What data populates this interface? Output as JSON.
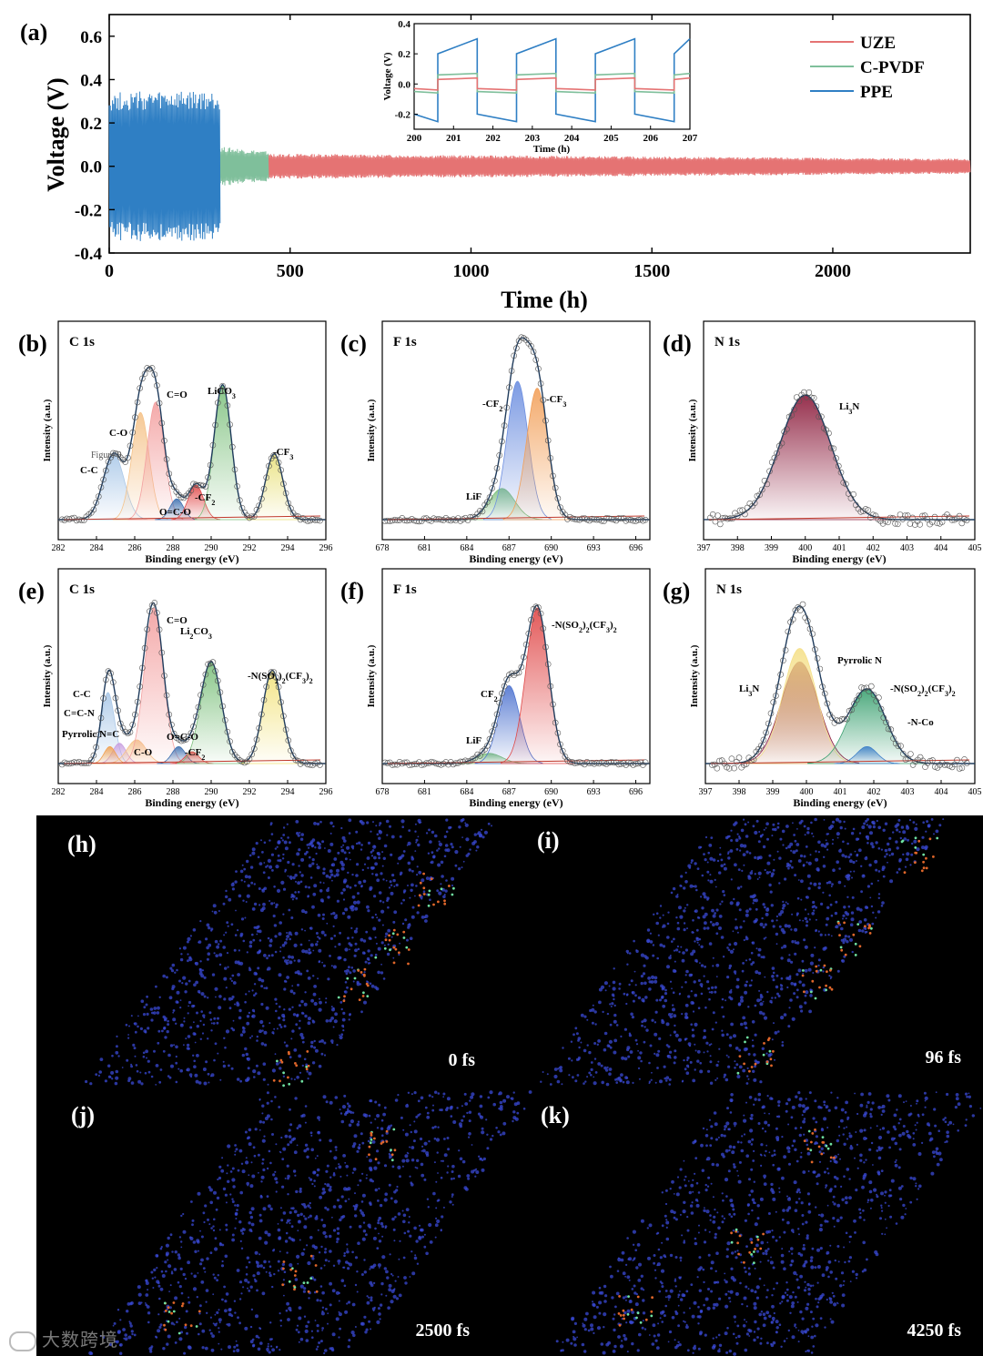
{
  "panel_labels": {
    "a": "(a)",
    "b": "(b)",
    "c": "(c)",
    "d": "(d)",
    "e": "(e)",
    "f": "(f)",
    "g": "(g)",
    "h": "(h)",
    "i": "(i)",
    "j": "(j)",
    "k": "(k)"
  },
  "colors": {
    "uze": "#e57373",
    "cpvdf": "#7fbf9b",
    "ppe": "#2f7fc4",
    "fit_line": "#1f3b5c",
    "sim_bg": "#000000",
    "sim_atoms": "#3a4ad6",
    "sim_accent": "#e0662a"
  },
  "chart_data": [
    {
      "id": "a",
      "type": "line",
      "xlabel": "Time (h)",
      "ylabel": "Voltage (V)",
      "xlim": [
        0,
        2380
      ],
      "ylim": [
        -0.4,
        0.7
      ],
      "xticks": [
        "0",
        "500",
        "1000",
        "1500",
        "2000"
      ],
      "yticks": [
        "-0.4",
        "-0.2",
        "0.0",
        "0.2",
        "0.4",
        "0.6"
      ],
      "legend_position": "top-right",
      "series": [
        {
          "name": "UZE",
          "x_range": [
            440,
            2380
          ],
          "amplitude": [
            0.05,
            0.03
          ]
        },
        {
          "name": "C-PVDF",
          "x_range": [
            300,
            440
          ],
          "amplitude": [
            0.08,
            0.06
          ]
        },
        {
          "name": "PPE",
          "x_range": [
            0,
            305
          ],
          "amplitude": [
            0.3,
            0.3
          ]
        }
      ],
      "inset": {
        "xlabel": "Time (h)",
        "ylabel": "Voltage (V)",
        "xlim": [
          200,
          207
        ],
        "ylim": [
          -0.3,
          0.4
        ],
        "xticks": [
          "200",
          "201",
          "202",
          "203",
          "204",
          "205",
          "206",
          "207"
        ],
        "yticks": [
          "-0.2",
          "0.0",
          "0.2",
          "0.4"
        ],
        "half_period_h": 1,
        "ppe": {
          "high": [
            0.2,
            0.3
          ],
          "low": [
            -0.2,
            -0.25
          ]
        },
        "cpvdf": {
          "high": [
            0.06,
            0.07
          ],
          "low": [
            -0.05,
            -0.06
          ]
        },
        "uze": {
          "high": [
            0.03,
            0.04
          ],
          "low": [
            -0.03,
            -0.04
          ]
        }
      }
    },
    {
      "id": "b",
      "type": "line",
      "title": "C 1s",
      "xlabel": "Binding energy (eV)",
      "ylabel": "Intensity (a.u.)",
      "xlim": [
        282,
        296
      ],
      "xticks": [
        "282",
        "284",
        "286",
        "288",
        "290",
        "292",
        "294",
        "296"
      ],
      "peaks": [
        {
          "label": "C-C",
          "center": 284.9,
          "height": 0.38,
          "width": 0.55,
          "color": "#aac8e8"
        },
        {
          "label": "C-O",
          "center": 286.3,
          "height": 0.62,
          "width": 0.45,
          "color": "#f5c38a"
        },
        {
          "label": "C=O",
          "center": 287.1,
          "height": 0.68,
          "width": 0.45,
          "color": "#f3a0a0"
        },
        {
          "label": "O=C-O",
          "center": 288.2,
          "height": 0.12,
          "width": 0.35,
          "color": "#3e6fb0"
        },
        {
          "label": "-CF",
          "sub": "2",
          "center": 289.2,
          "height": 0.2,
          "width": 0.4,
          "color": "#e04848"
        },
        {
          "label": "LiCO",
          "sub": "3",
          "center": 290.6,
          "height": 0.78,
          "width": 0.45,
          "color": "#7cc07c"
        },
        {
          "label": "-CF",
          "sub": "3",
          "center": 293.3,
          "height": 0.38,
          "width": 0.45,
          "color": "#e8e07a"
        }
      ],
      "annotation": "Figure 9"
    },
    {
      "id": "c",
      "type": "line",
      "title": "F 1s",
      "xlabel": "Binding energy (eV)",
      "ylabel": "Intensity (a.u.)",
      "xlim": [
        678,
        697
      ],
      "xticks": [
        "678",
        "681",
        "684",
        "687",
        "690",
        "693",
        "696"
      ],
      "peaks": [
        {
          "label": "LiF",
          "center": 686.5,
          "height": 0.18,
          "width": 0.9,
          "color": "#7cc07c"
        },
        {
          "label": "-CF",
          "sub": "2",
          "center": 687.6,
          "height": 0.8,
          "width": 0.75,
          "color": "#6d8fe0"
        },
        {
          "label": "-CF",
          "sub": "3",
          "center": 689.0,
          "height": 0.76,
          "width": 0.75,
          "color": "#f2a05a"
        }
      ]
    },
    {
      "id": "d",
      "type": "line",
      "title": "N 1s",
      "xlabel": "Binding energy (eV)",
      "ylabel": "Intensity (a.u.)",
      "xlim": [
        397,
        405
      ],
      "xticks": [
        "397",
        "398",
        "399",
        "400",
        "401",
        "402",
        "403",
        "404",
        "405"
      ],
      "peaks": [
        {
          "label": "Li",
          "sub": "3",
          "after": "N",
          "center": 400.0,
          "height": 0.72,
          "width": 0.75,
          "color": "#8b1a3a"
        }
      ]
    },
    {
      "id": "e",
      "type": "line",
      "title": "C 1s",
      "xlabel": "Binding energy (eV)",
      "ylabel": "Intensity (a.u.)",
      "xlim": [
        282,
        296
      ],
      "xticks": [
        "282",
        "284",
        "286",
        "288",
        "290",
        "292",
        "294",
        "296"
      ],
      "peaks": [
        {
          "label": "C-C",
          "center": 284.6,
          "height": 0.42,
          "width": 0.35,
          "color": "#aac8e8"
        },
        {
          "label": "C=C-N",
          "center": 285.2,
          "height": 0.12,
          "width": 0.35,
          "color": "#c9a0e0"
        },
        {
          "label": "Pyrrolic N=C",
          "center": 284.7,
          "height": 0.1,
          "width": 0.3,
          "color": "#f0a050"
        },
        {
          "label": "C-O",
          "center": 286.1,
          "height": 0.14,
          "width": 0.5,
          "color": "#f5c38a"
        },
        {
          "label": "C=O",
          "center": 287.0,
          "height": 0.92,
          "width": 0.5,
          "color": "#f3a0a0"
        },
        {
          "label": "O=C-O",
          "center": 288.3,
          "height": 0.1,
          "width": 0.35,
          "color": "#3e6fb0"
        },
        {
          "label": "-CF",
          "sub": "2",
          "center": 289.0,
          "height": 0.07,
          "width": 0.35,
          "color": "#e04848"
        },
        {
          "label": "Li",
          "sub": "2",
          "after": "CO",
          "sub2": "3",
          "center": 290.0,
          "height": 0.6,
          "width": 0.55,
          "color": "#7cc07c"
        },
        {
          "label": "-N(SO",
          "sub": "2",
          "after": ")",
          "sub2": "2",
          "after2": "(CF",
          "sub3": "3",
          "after3": ")",
          "sub4": "2",
          "center": 293.2,
          "height": 0.55,
          "width": 0.5,
          "color": "#f2e27a"
        }
      ]
    },
    {
      "id": "f",
      "type": "line",
      "title": "F 1s",
      "xlabel": "Binding energy (eV)",
      "ylabel": "Intensity (a.u.)",
      "xlim": [
        678,
        697
      ],
      "xticks": [
        "678",
        "681",
        "684",
        "687",
        "690",
        "693",
        "696"
      ],
      "peaks": [
        {
          "label": "LiF",
          "center": 685.6,
          "height": 0.06,
          "width": 0.9,
          "color": "#7cc07c"
        },
        {
          "label": "CF",
          "sub": "2",
          "center": 687.0,
          "height": 0.46,
          "width": 0.75,
          "color": "#4f74d0"
        },
        {
          "label": "-N(SO",
          "sub": "2",
          "after": ")",
          "sub2": "2",
          "after2": "(CF",
          "sub3": "3",
          "after3": ")",
          "sub4": "2",
          "center": 689.0,
          "height": 0.92,
          "width": 0.8,
          "color": "#e04848"
        }
      ]
    },
    {
      "id": "g",
      "type": "line",
      "title": "N 1s",
      "xlabel": "Binding energy (eV)",
      "ylabel": "Intensity (a.u.)",
      "xlim": [
        397,
        405
      ],
      "xticks": [
        "397",
        "398",
        "399",
        "400",
        "401",
        "402",
        "403",
        "404",
        "405"
      ],
      "peaks": [
        {
          "label": "Li",
          "sub": "3",
          "after": "N",
          "center": 399.8,
          "height": 0.6,
          "width": 0.55,
          "color": "#8b1a3a"
        },
        {
          "label": "Pyrrolic N",
          "center": 399.8,
          "height": 0.68,
          "width": 0.5,
          "color": "#f5e08a"
        },
        {
          "label": "-N(SO",
          "sub": "2",
          "after": ")",
          "sub2": "2",
          "after2": "(CF",
          "sub3": "3",
          "after3": ")",
          "sub4": "2",
          "center": 401.8,
          "height": 0.44,
          "width": 0.55,
          "color": "#3aa070"
        },
        {
          "label": "-N-Co",
          "center": 401.8,
          "height": 0.1,
          "width": 0.3,
          "color": "#3e80c8"
        }
      ]
    }
  ],
  "simulation_frames": [
    {
      "id": "h",
      "time_label": "0 fs"
    },
    {
      "id": "i",
      "time_label": "96 fs"
    },
    {
      "id": "j",
      "time_label": "2500 fs"
    },
    {
      "id": "k",
      "time_label": "4250 fs"
    }
  ],
  "watermark": "大数跨境"
}
